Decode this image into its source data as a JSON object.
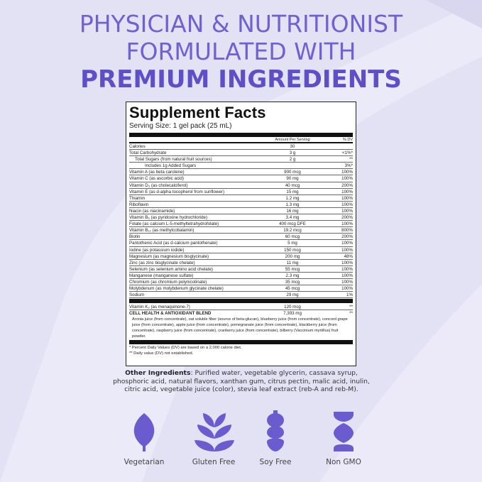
{
  "headline": {
    "line1": "PHYSICIAN & NUTRITIONIST",
    "line2": "FORMULATED WITH",
    "line3": "PREMIUM INGREDIENTS"
  },
  "colors": {
    "accent": "#6f61d2",
    "background": "#e3e1f4"
  },
  "facts": {
    "title": "Supplement Facts",
    "serving": "Serving Size: 1 gel pack (25 mL)",
    "col_amount": "Amount Per Serving",
    "col_dv": "% DV",
    "rows": [
      {
        "n": "Calories",
        "a": "30",
        "d": "",
        "lvl": 0
      },
      {
        "n": "Total Carbohydrate",
        "a": "3 g",
        "d": "<1%*",
        "lvl": 0
      },
      {
        "n": "Total Sugars (from natural fruit sources)",
        "a": "2 g",
        "d": "**",
        "lvl": 1
      },
      {
        "n": "Includes 1g Added Sugars",
        "a": "",
        "d": "3%*",
        "lvl": 2
      },
      {
        "n": "Vitamin A (as beta carotene)",
        "a": "900 mcg",
        "d": "100%",
        "lvl": 0
      },
      {
        "n": "Vitamin C (as ascorbic acid)",
        "a": "90 mg",
        "d": "100%",
        "lvl": 0
      },
      {
        "n": "Vitamin D₃ (as cholecalciferol)",
        "a": "40 mcg",
        "d": "200%",
        "lvl": 0
      },
      {
        "n": "Vitamin E (as d-alpha tocopherol from sunflower)",
        "a": "15 mg",
        "d": "100%",
        "lvl": 0
      },
      {
        "n": "Thiamin",
        "a": "1.2 mg",
        "d": "100%",
        "lvl": 0
      },
      {
        "n": "Riboflavin",
        "a": "1.3 mg",
        "d": "100%",
        "lvl": 0
      },
      {
        "n": "Niacin (as niacinamide)",
        "a": "16 mg",
        "d": "100%",
        "lvl": 0
      },
      {
        "n": "Vitamin B₆ (as pyridoxine hydrochloride)",
        "a": "3.4 mg",
        "d": "200%",
        "lvl": 0
      },
      {
        "n": "Folate (as calcium L-5-methyltetrahydrofolate)",
        "a": "400 mcg DFE",
        "d": "100%",
        "lvl": 0
      },
      {
        "n": "Vitamin B₁₂ (as methylcobalamin)",
        "a": "19.2 mcg",
        "d": "800%",
        "lvl": 0
      },
      {
        "n": "Biotin",
        "a": "60 mcg",
        "d": "200%",
        "lvl": 0
      },
      {
        "n": "Pantothenic Acid (as d-calcium pantothenate)",
        "a": "5 mg",
        "d": "100%",
        "lvl": 0
      },
      {
        "n": "Iodine (as potassium iodide)",
        "a": "150 mcg",
        "d": "100%",
        "lvl": 0
      },
      {
        "n": "Magnesium (as magnesium bisglycinate)",
        "a": "200 mg",
        "d": "48%",
        "lvl": 0
      },
      {
        "n": "Zinc (as zinc bisglycinate chelate)",
        "a": "11 mg",
        "d": "100%",
        "lvl": 0
      },
      {
        "n": "Selenium (as selenium amino acid chelate)",
        "a": "55 mcg",
        "d": "100%",
        "lvl": 0
      },
      {
        "n": "Manganese (manganese sulfate)",
        "a": "2.3 mg",
        "d": "100%",
        "lvl": 0
      },
      {
        "n": "Chromium (as chromium polynicotinate)",
        "a": "35 mcg",
        "d": "100%",
        "lvl": 0
      },
      {
        "n": "Molybdenum (as molybdenum glycinate chelate)",
        "a": "45 mcg",
        "d": "100%",
        "lvl": 0
      },
      {
        "n": "Sodium",
        "a": "29 mg",
        "d": "1%",
        "lvl": 0
      }
    ],
    "k2": {
      "n": "Vitamin K₂ (as menaquinone-7)",
      "a": "120 mcg",
      "d": "**"
    },
    "blend": {
      "n": "CELL HEALTH & ANTIOXIDANT BLEND",
      "a": "7,393 mg",
      "d": "**"
    },
    "blend_desc": "Aronia juice (from concentrate), oat soluble fiber (source of beta-glucan), blueberry juice (from concentrate), concord grape juice (from concentrate), apple juice (from concentrate), pomegranate juice (from concentrate), blackberry juice (from concentrate), raspberry juice (from concentrate), cranberry juice (from concentrate), bilberry (Vaccinium myrtillus) fruit powder.",
    "foot1": "* Percent Daily Values (DV) are based on a 2,000 calorie diet.",
    "foot2": "** Daily value (DV) not established."
  },
  "other": {
    "label": "Other Ingredients",
    "text": ": Purified water, vegetable glycerin, cassava syrup, phosphoric acid, natural flavors, xanthan gum, citrus pectin, malic acid, inulin, citric acid, vegetable juice (color), stevia leaf extract (reb-A and reb-M)."
  },
  "badges": [
    {
      "label": "Vegetarian",
      "icon": "leaf-icon"
    },
    {
      "label": "Gluten Free",
      "icon": "wheat-icon"
    },
    {
      "label": "Soy Free",
      "icon": "soybean-icon"
    },
    {
      "label": "Non GMO",
      "icon": "dna-icon"
    }
  ]
}
